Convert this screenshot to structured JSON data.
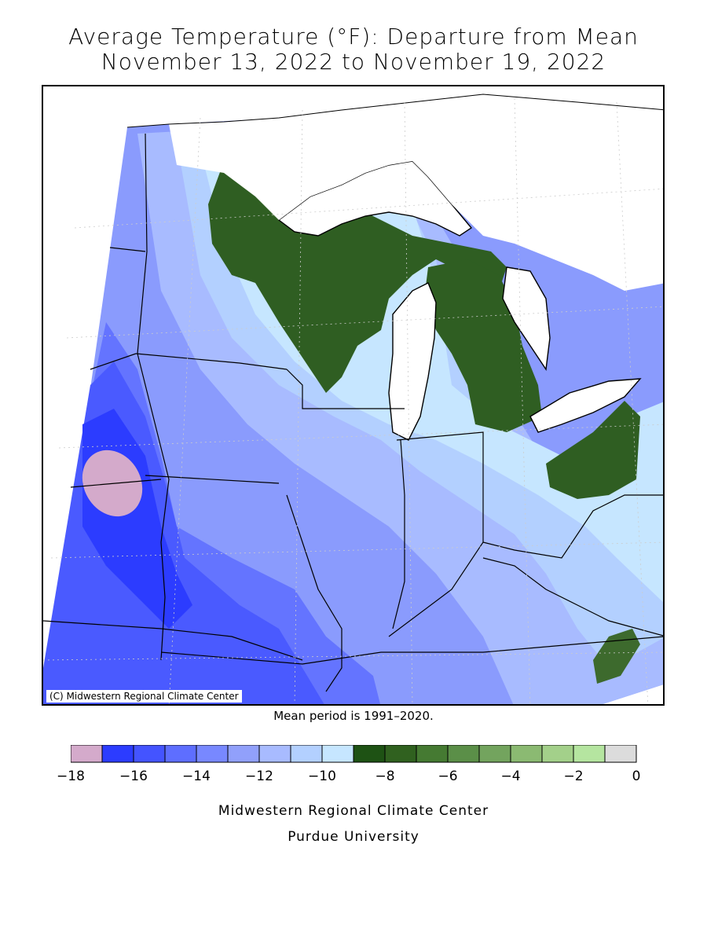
{
  "title": {
    "line1": "Average Temperature (°F): Departure from Mean",
    "line2": "November 13, 2022 to November 19, 2022"
  },
  "map": {
    "copyright": "(C) Midwestern Regional Climate Center",
    "mean_period": "Mean period is 1991–2020."
  },
  "legend": {
    "bins": [
      {
        "from": -18,
        "to": -17,
        "color": "#d4aacb"
      },
      {
        "from": -17,
        "to": -16,
        "color": "#2c3cff"
      },
      {
        "from": -16,
        "to": -15,
        "color": "#4454ff"
      },
      {
        "from": -15,
        "to": -14,
        "color": "#5e6eff"
      },
      {
        "from": -14,
        "to": -13,
        "color": "#7888ff"
      },
      {
        "from": -13,
        "to": -12,
        "color": "#91a0fb"
      },
      {
        "from": -12,
        "to": -11,
        "color": "#a8bbff"
      },
      {
        "from": -11,
        "to": -10,
        "color": "#b3d0ff"
      },
      {
        "from": -10,
        "to": -9,
        "color": "#c6e6ff"
      },
      {
        "from": -9,
        "to": -8,
        "color": "#1e5214"
      },
      {
        "from": -8,
        "to": -7,
        "color": "#30611f"
      },
      {
        "from": -7,
        "to": -6,
        "color": "#457a32"
      },
      {
        "from": -6,
        "to": -5,
        "color": "#5b8f48"
      },
      {
        "from": -5,
        "to": -4,
        "color": "#73a45e"
      },
      {
        "from": -4,
        "to": -3,
        "color": "#8bba72"
      },
      {
        "from": -3,
        "to": -2,
        "color": "#a3d08a"
      },
      {
        "from": -2,
        "to": -1,
        "color": "#b5e5a0"
      },
      {
        "from": -1,
        "to": 0,
        "color": "#dcdcdc"
      }
    ],
    "tick_labels": [
      "−18",
      "−16",
      "−14",
      "−12",
      "−10",
      "−8",
      "−6",
      "−4",
      "−2",
      "0"
    ]
  },
  "footer": {
    "line1": "Midwestern Regional Climate Center",
    "line2": "Purdue University"
  }
}
